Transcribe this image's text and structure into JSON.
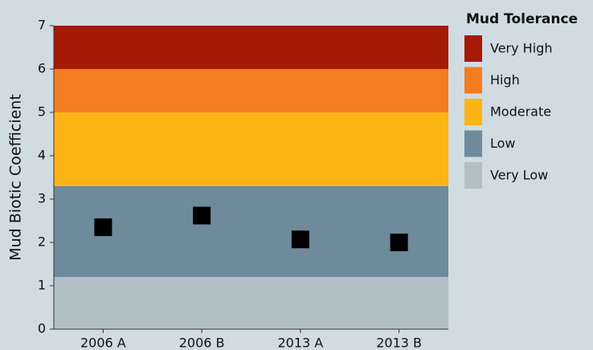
{
  "chart_data": {
    "type": "dot",
    "ylabel": "Mud Biotic Coefficient",
    "categories": [
      "2006 A",
      "2006 B",
      "2013 A",
      "2013 B"
    ],
    "values": [
      2.35,
      2.62,
      2.07,
      2.0
    ],
    "color": "#000000",
    "ylim": [
      0,
      7
    ],
    "yticks": [
      0,
      1,
      2,
      3,
      4,
      5,
      6,
      7
    ],
    "legend_title": "Mud Tolerance",
    "legend": "right",
    "bands": [
      {
        "name": "Very High",
        "color": "#a51a04",
        "range": [
          6,
          7
        ]
      },
      {
        "name": "High",
        "color": "#f47d20",
        "range": [
          5,
          6
        ]
      },
      {
        "name": "Moderate",
        "color": "#fdb515",
        "range": [
          3.3,
          5
        ]
      },
      {
        "name": "Low",
        "color": "#6e8b9c",
        "range": [
          1.2,
          3.3
        ]
      },
      {
        "name": "Very Low",
        "color": "#b1bfc6",
        "range": [
          0,
          1.2
        ]
      }
    ]
  }
}
